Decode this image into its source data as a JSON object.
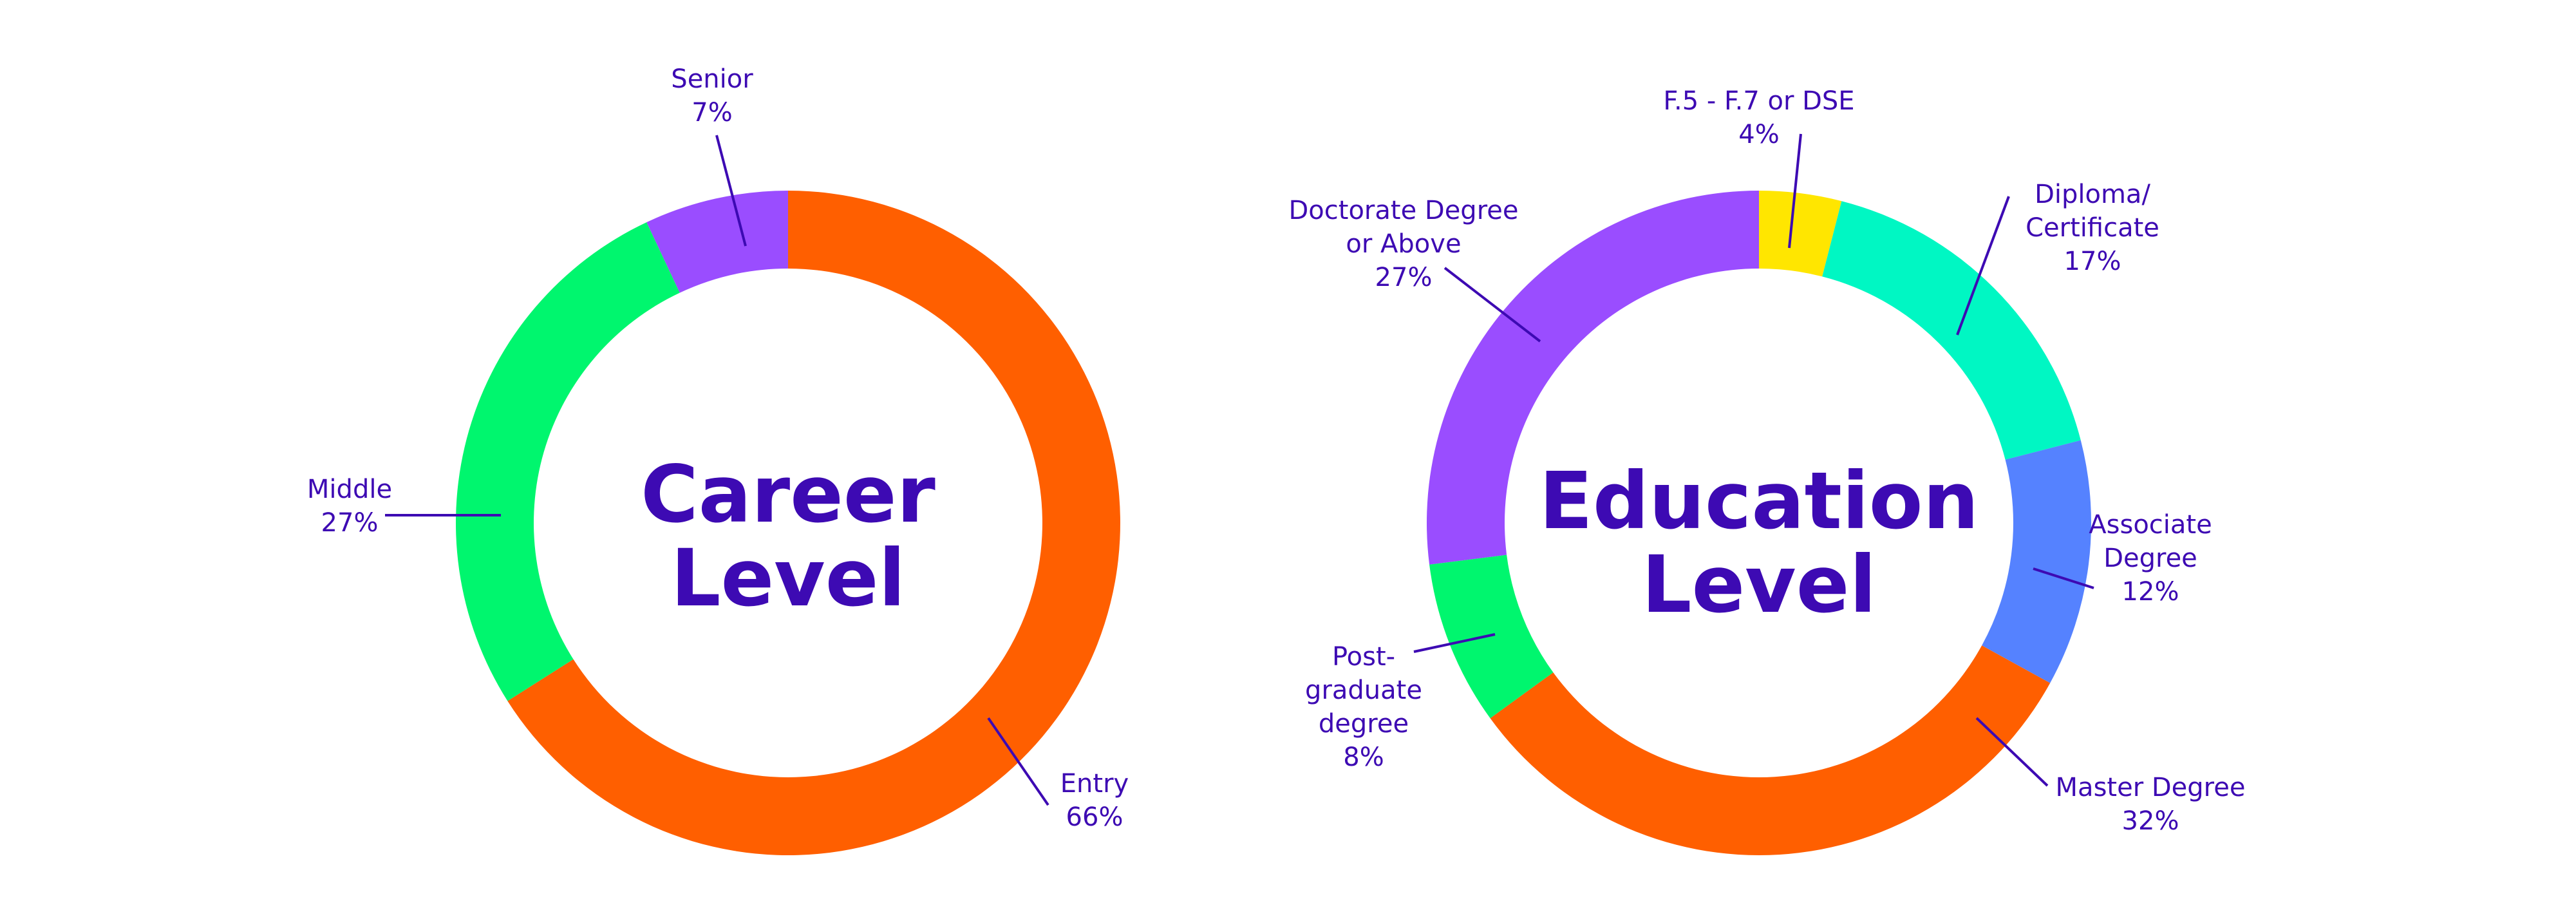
{
  "chart_data": [
    {
      "type": "pie",
      "variant": "donut",
      "title": "Career Level",
      "categories": [
        "Entry",
        "Middle",
        "Senior"
      ],
      "values": [
        66,
        27,
        7
      ],
      "value_labels": [
        "66%",
        "27%",
        "7%"
      ],
      "colors": [
        "#ff5f00",
        "#00f66e",
        "#9a4dff"
      ],
      "legend": "callout labels beside slices"
    },
    {
      "type": "pie",
      "variant": "donut",
      "title": "Education Level",
      "categories": [
        "F.5 - F.7 or DSE",
        "Diploma/ Certificate",
        "Associate Degree",
        "Master Degree",
        "Post- graduate degree",
        "Doctorate Degree or Above"
      ],
      "values": [
        4,
        17,
        12,
        32,
        8,
        27
      ],
      "value_labels": [
        "4%",
        "17%",
        "12%",
        "32%",
        "8%",
        "27%"
      ],
      "colors": [
        "#ffe600",
        "#00f7c3",
        "#5582ff",
        "#ff5f00",
        "#00f66e",
        "#9a4dff"
      ],
      "legend": "callout labels beside slices"
    }
  ],
  "labels": {
    "career": {
      "title_lines": [
        "Career",
        "Level"
      ],
      "callouts": [
        {
          "lines": [
            "Entry",
            "66%"
          ]
        },
        {
          "lines": [
            "Middle",
            "27%"
          ]
        },
        {
          "lines": [
            "Senior",
            "7%"
          ]
        }
      ]
    },
    "education": {
      "title_lines": [
        "Education",
        "Level"
      ],
      "callouts": [
        {
          "lines": [
            "F.5 - F.7 or DSE",
            "4%"
          ]
        },
        {
          "lines": [
            "Diploma/",
            "Certificate",
            "17%"
          ]
        },
        {
          "lines": [
            "Associate",
            "Degree",
            "12%"
          ]
        },
        {
          "lines": [
            "Master Degree",
            "32%"
          ]
        },
        {
          "lines": [
            "Post-",
            "graduate",
            "degree",
            "8%"
          ]
        },
        {
          "lines": [
            "Doctorate Degree",
            "or Above",
            "27%"
          ]
        }
      ]
    }
  }
}
